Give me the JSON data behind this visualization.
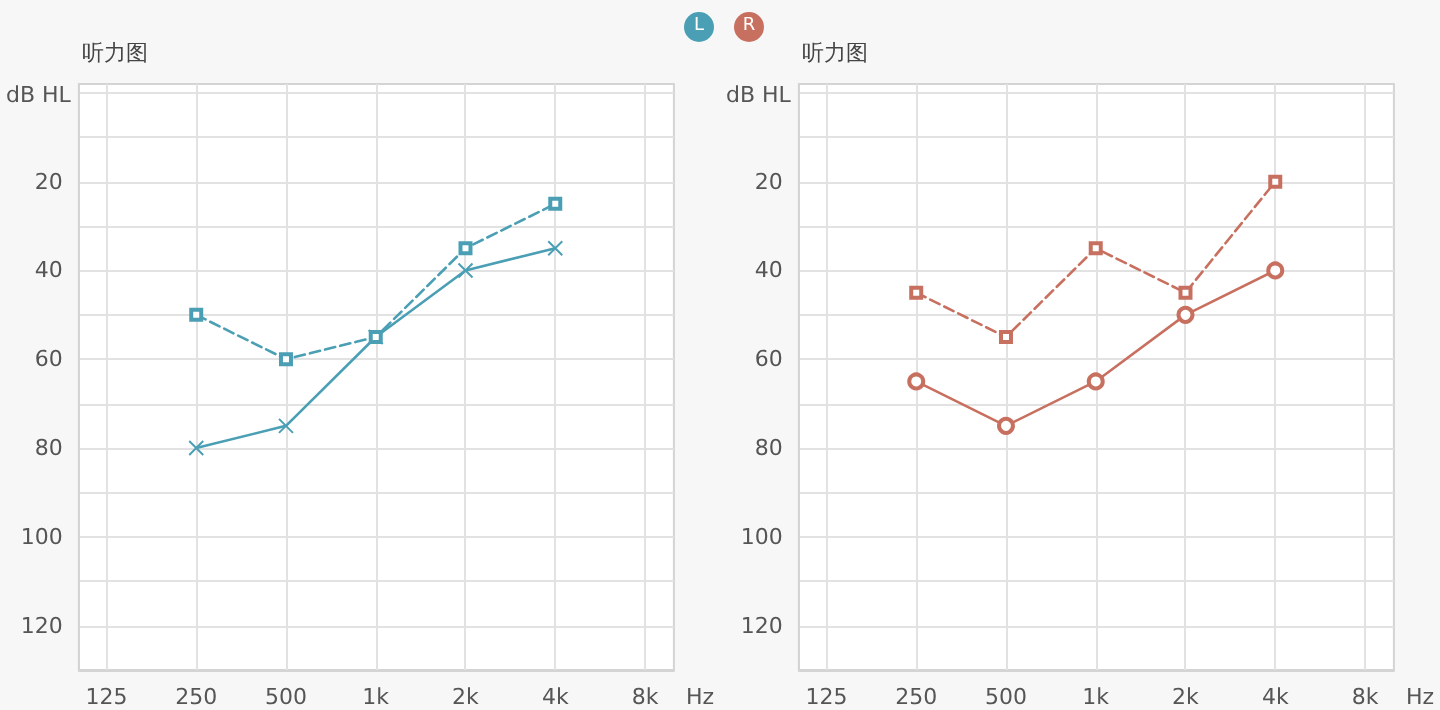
{
  "chart_data": [
    {
      "type": "line",
      "title": "听力图",
      "ylabel": "dB HL",
      "xlabel": "Hz",
      "annotations": [
        "L"
      ],
      "x": [
        250,
        500,
        1000,
        2000,
        4000
      ],
      "series": [
        {
          "color": "#4a9fb5",
          "marker": "cross",
          "line_style": "solid",
          "values": [
            80,
            75,
            55,
            40,
            35
          ]
        },
        {
          "color": "#4a9fb5",
          "marker": "square",
          "line_style": "dashed",
          "values": [
            50,
            60,
            55,
            35,
            25
          ]
        }
      ],
      "xlim": [
        101,
        10000
      ],
      "xticks": [
        125,
        250,
        500,
        {
          "value": 1000,
          "label": "1k"
        },
        {
          "value": 2000,
          "label": "2k"
        },
        {
          "value": 4000,
          "label": "4k"
        },
        {
          "value": 8000,
          "label": "8k"
        }
      ],
      "log": "x",
      "ylim": [
        130,
        -2
      ],
      "yticks": [
        {
          "value": 0,
          "label": null
        },
        {
          "value": 10,
          "label": null
        },
        20,
        {
          "value": 30,
          "label": null
        },
        40,
        {
          "value": 50,
          "label": null
        },
        60,
        {
          "value": 70,
          "label": null
        },
        80,
        {
          "value": 90,
          "label": null
        },
        100,
        {
          "value": 110,
          "label": null
        },
        120,
        {
          "value": 130,
          "label": null
        }
      ],
      "grid": true
    },
    {
      "type": "line",
      "title": "听力图",
      "ylabel": "dB HL",
      "xlabel": "Hz",
      "annotations": [
        "R"
      ],
      "x": [
        250,
        500,
        1000,
        2000,
        4000
      ],
      "series": [
        {
          "color": "#c8705f",
          "marker": "circle",
          "line_style": "solid",
          "values": [
            65,
            75,
            65,
            50,
            40
          ]
        },
        {
          "color": "#c8705f",
          "marker": "square",
          "line_style": "dashed",
          "values": [
            45,
            55,
            35,
            45,
            20
          ]
        }
      ],
      "xlim": [
        101,
        10000
      ],
      "xticks": [
        125,
        250,
        500,
        {
          "value": 1000,
          "label": "1k"
        },
        {
          "value": 2000,
          "label": "2k"
        },
        {
          "value": 4000,
          "label": "4k"
        },
        {
          "value": 8000,
          "label": "8k"
        }
      ],
      "log": "x",
      "ylim": [
        130,
        -2
      ],
      "yticks": [
        {
          "value": 0,
          "label": null
        },
        {
          "value": 10,
          "label": null
        },
        20,
        {
          "value": 30,
          "label": null
        },
        40,
        {
          "value": 50,
          "label": null
        },
        60,
        {
          "value": 70,
          "label": null
        },
        80,
        {
          "value": 90,
          "label": null
        },
        100,
        {
          "value": 110,
          "label": null
        },
        120,
        {
          "value": 130,
          "label": null
        }
      ],
      "grid": true
    }
  ]
}
